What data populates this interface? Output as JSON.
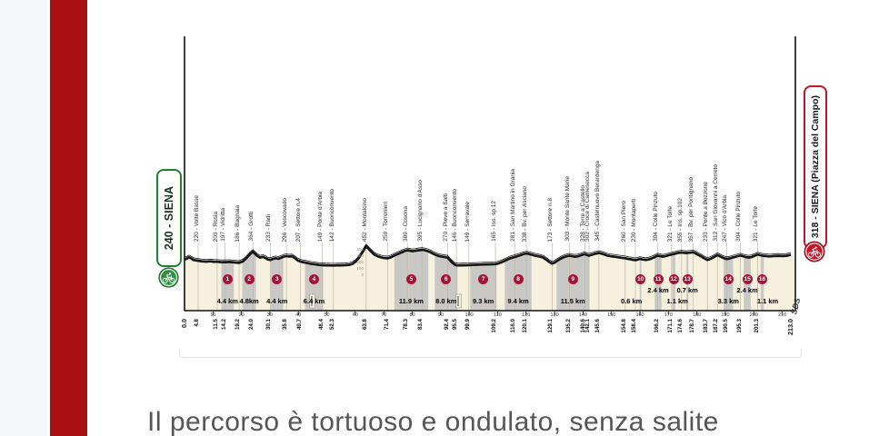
{
  "page": {
    "colors": {
      "left_strip": "#f4f6fa",
      "red_bar": "#a80f12",
      "beige_fill": "#f6f1de",
      "gravel_gray": "#c9c8c5",
      "badge_red": "#a31537",
      "leader_line": "#bcb8aa",
      "profile_black": "#161616",
      "start_green": "#2f9140",
      "finish_red": "#c21527"
    }
  },
  "bottom_text": "Il percorso è tortuoso e ondulato, senza salite",
  "chart_data": {
    "type": "area",
    "xlabel": "km",
    "ylabel": "elevation (m)",
    "xlim": [
      0,
      213
    ],
    "ylim": [
      0,
      500
    ],
    "grid": "leader-lines-only",
    "start_label": {
      "text": "240 - SIENA",
      "icon": "cyclist-icon"
    },
    "finish_label": {
      "text": "318 - SIENA (Piazza del Campo)",
      "icon": "cyclist-icon"
    },
    "sds_signature": "SDS",
    "axis_end_labels": [
      "0.0",
      "213.0"
    ],
    "x_ticks": [
      10,
      20,
      30,
      40,
      50,
      60,
      70,
      80,
      90,
      100,
      110,
      120,
      130,
      140,
      150,
      160,
      170,
      180,
      190,
      200,
      210
    ],
    "elevation_scale_labels": [
      "400",
      "300",
      "200",
      "100",
      "0"
    ],
    "places": [
      {
        "km": 4.8,
        "km_label": "4.8",
        "label": "220 - Volte Basse"
      },
      {
        "km": 11.5,
        "km_label": "11.5",
        "label": "203 - Rosia"
      },
      {
        "km": 14.2,
        "km_label": "14.2",
        "label": "197 - Vidritta"
      },
      {
        "km": 19.2,
        "km_label": "19.2",
        "label": "186 - Bagnaia"
      },
      {
        "km": 24.0,
        "km_label": "24.0",
        "label": "364 - Grotti"
      },
      {
        "km": 30.1,
        "km_label": "30.1",
        "label": "233 - Radi"
      },
      {
        "km": 35.8,
        "km_label": "35.8",
        "label": "296 - Vescovado"
      },
      {
        "km": 40.7,
        "km_label": "40.7",
        "label": "207 - Settore n.4"
      },
      {
        "km": 48.4,
        "km_label": "48.4",
        "label": "149 - Ponte d'Arbia"
      },
      {
        "km": 52.3,
        "km_label": "52.3",
        "label": "142 - Buonconvento"
      },
      {
        "km": 63.8,
        "km_label": "63.8",
        "label": "452 - Montalcino"
      },
      {
        "km": 71.4,
        "km_label": "71.4",
        "label": "259 - Torrenieri"
      },
      {
        "km": 78.3,
        "km_label": "78.3",
        "label": "389 - Cosona"
      },
      {
        "km": 83.4,
        "km_label": "83.4",
        "label": "395 - Lucignano d'Asso"
      },
      {
        "km": 92.4,
        "km_label": "92.4",
        "label": "270 - Pieve a Salti"
      },
      {
        "km": 95.5,
        "km_label": "95.5",
        "label": "146 - Buonconvento"
      },
      {
        "km": 99.9,
        "km_label": "99.9",
        "label": "149 - Serravale"
      },
      {
        "km": 109.2,
        "km_label": "109.2",
        "label": "165 - Ins. sp.12"
      },
      {
        "km": 116.0,
        "km_label": "116.0",
        "label": "281 - San Martino in Grania"
      },
      {
        "km": 120.1,
        "km_label": "120.1",
        "label": "338 - Bv. per Asciano"
      },
      {
        "km": 129.1,
        "km_label": "129.1",
        "label": "173 - Settore n.8"
      },
      {
        "km": 135.2,
        "km_label": "135.2",
        "label": "303 - Monte Sante Marie"
      },
      {
        "km": 140.6,
        "km_label": "140.6",
        "label": "328 - Torre a Castello"
      },
      {
        "km": 142.1,
        "km_label": "142.1",
        "label": "302 - Croce di Camesecca"
      },
      {
        "km": 145.6,
        "km_label": "145.6",
        "label": "345 - Castelnuovo Berardenga"
      },
      {
        "km": 154.8,
        "km_label": "154.8",
        "label": "260 - San Piero"
      },
      {
        "km": 158.4,
        "km_label": "158.4",
        "label": "230 - Montaperti"
      },
      {
        "km": 166.2,
        "km_label": "166.2",
        "label": "304 - Colle Pinzuto"
      },
      {
        "km": 171.1,
        "km_label": "171.1",
        "label": "321 - Le Tolfe"
      },
      {
        "km": 174.6,
        "km_label": "174.6",
        "label": "355 - Ins. sp.102"
      },
      {
        "km": 178.7,
        "km_label": "178.7",
        "label": "357 - Bv. per Pontignano"
      },
      {
        "km": 183.7,
        "km_label": "183.7",
        "label": "233 - Ponte a Bozzone"
      },
      {
        "km": 187.2,
        "km_label": "187.2",
        "label": "312 - San Giovanni a Cerreto"
      },
      {
        "km": 190.5,
        "km_label": "190.5",
        "label": "247 - Vico d'Arbia"
      },
      {
        "km": 195.3,
        "km_label": "195.3",
        "label": "304 - Colle Pinzuto"
      },
      {
        "km": 201.3,
        "km_label": "201.3",
        "label": "321 - Le Tolfe"
      }
    ],
    "sectors": [
      {
        "n": "1",
        "len": "4.4 km",
        "from": 12.9,
        "to": 17.3,
        "row": "low",
        "dx": 0
      },
      {
        "n": "2",
        "len": "4.8km",
        "from": 20.3,
        "to": 25.1,
        "row": "low",
        "dx": 0
      },
      {
        "n": "3",
        "len": "4.4 km",
        "from": 30.3,
        "to": 34.7,
        "row": "low",
        "dx": 0
      },
      {
        "n": "4",
        "len": "6.4 km",
        "from": 42.3,
        "to": 48.7,
        "row": "low",
        "dx": 0
      },
      {
        "n": "5",
        "len": "11.9 km",
        "from": 73.7,
        "to": 85.6,
        "row": "low",
        "dx": 0
      },
      {
        "n": "6",
        "len": "8.0 km",
        "from": 87.9,
        "to": 95.9,
        "row": "low",
        "dx": 0
      },
      {
        "n": "7",
        "len": "9.3 km",
        "from": 100.3,
        "to": 109.6,
        "row": "low",
        "dx": 0
      },
      {
        "n": "8",
        "len": "9.4 km",
        "from": 112.5,
        "to": 121.9,
        "row": "low",
        "dx": 0
      },
      {
        "n": "9",
        "len": "11.5 km",
        "from": 130.7,
        "to": 142.2,
        "row": "low",
        "dx": 0
      },
      {
        "n": "10",
        "len": "0.6 km",
        "from": 159.9,
        "to": 160.5,
        "row": "low",
        "dx": -10
      },
      {
        "n": "11",
        "len": "2.4 km",
        "from": 165.2,
        "to": 167.6,
        "row": "high",
        "dx": 0
      },
      {
        "n": "12",
        "len": "1.1 km",
        "from": 171.3,
        "to": 172.4,
        "row": "low",
        "dx": 4
      },
      {
        "n": "13",
        "len": "0.7 km",
        "from": 176.3,
        "to": 177.0,
        "row": "high",
        "dx": 0
      },
      {
        "n": "14",
        "len": "3.3 km",
        "from": 189.4,
        "to": 192.7,
        "row": "low",
        "dx": 0
      },
      {
        "n": "15",
        "len": "2.4 km",
        "from": 196.5,
        "to": 198.9,
        "row": "high",
        "dx": 0
      },
      {
        "n": "16",
        "len": "1.1 km",
        "from": 202.4,
        "to": 203.5,
        "row": "low",
        "dx": 6
      }
    ],
    "feed_zones": [
      {
        "km": 44.9
      },
      {
        "km": 96.3
      }
    ],
    "profile": [
      [
        0,
        240
      ],
      [
        0.8,
        255
      ],
      [
        1.5,
        275
      ],
      [
        2.2,
        262
      ],
      [
        3,
        235
      ],
      [
        4,
        225
      ],
      [
        4.8,
        220
      ],
      [
        6,
        210
      ],
      [
        7.5,
        206
      ],
      [
        9,
        210
      ],
      [
        10.2,
        205
      ],
      [
        11.5,
        203
      ],
      [
        12.5,
        199
      ],
      [
        14.2,
        197
      ],
      [
        16,
        200
      ],
      [
        17.5,
        192
      ],
      [
        19.2,
        186
      ],
      [
        20.5,
        210
      ],
      [
        21.5,
        250
      ],
      [
        22.5,
        300
      ],
      [
        23.3,
        340
      ],
      [
        24,
        364
      ],
      [
        24.8,
        330
      ],
      [
        25.5,
        300
      ],
      [
        26.5,
        270
      ],
      [
        27.5,
        282
      ],
      [
        28.5,
        262
      ],
      [
        29.3,
        240
      ],
      [
        30.1,
        233
      ],
      [
        31,
        248
      ],
      [
        32,
        260
      ],
      [
        33,
        252
      ],
      [
        34,
        270
      ],
      [
        35,
        288
      ],
      [
        35.8,
        296
      ],
      [
        36.8,
        288
      ],
      [
        37.8,
        292
      ],
      [
        38.8,
        260
      ],
      [
        39.8,
        225
      ],
      [
        40.7,
        207
      ],
      [
        41.8,
        195
      ],
      [
        43,
        185
      ],
      [
        44.5,
        170
      ],
      [
        46,
        160
      ],
      [
        47.2,
        152
      ],
      [
        48.4,
        149
      ],
      [
        49.5,
        146
      ],
      [
        50.5,
        144
      ],
      [
        51.5,
        143
      ],
      [
        52.3,
        142
      ],
      [
        53.5,
        144
      ],
      [
        55,
        146
      ],
      [
        56.5,
        148
      ],
      [
        58,
        155
      ],
      [
        59,
        170
      ],
      [
        60,
        200
      ],
      [
        61,
        250
      ],
      [
        62,
        320
      ],
      [
        62.8,
        380
      ],
      [
        63.4,
        425
      ],
      [
        63.8,
        452
      ],
      [
        64.5,
        420
      ],
      [
        65.3,
        380
      ],
      [
        66.2,
        340
      ],
      [
        67,
        310
      ],
      [
        68,
        290
      ],
      [
        69,
        275
      ],
      [
        70,
        265
      ],
      [
        71.4,
        259
      ],
      [
        72.5,
        275
      ],
      [
        73.5,
        300
      ],
      [
        74.5,
        320
      ],
      [
        75.5,
        340
      ],
      [
        76.5,
        360
      ],
      [
        77.4,
        378
      ],
      [
        78.3,
        389
      ],
      [
        79.2,
        382
      ],
      [
        80,
        375
      ],
      [
        81,
        380
      ],
      [
        82,
        388
      ],
      [
        83.4,
        395
      ],
      [
        84.5,
        388
      ],
      [
        85.5,
        375
      ],
      [
        86.5,
        355
      ],
      [
        87.5,
        330
      ],
      [
        88.5,
        310
      ],
      [
        89.5,
        295
      ],
      [
        90.5,
        285
      ],
      [
        91.5,
        278
      ],
      [
        92.4,
        270
      ],
      [
        93.2,
        230
      ],
      [
        94,
        190
      ],
      [
        94.8,
        160
      ],
      [
        95.5,
        146
      ],
      [
        96.5,
        144
      ],
      [
        97.5,
        146
      ],
      [
        98.7,
        147
      ],
      [
        99.9,
        149
      ],
      [
        101,
        152
      ],
      [
        102.5,
        155
      ],
      [
        104,
        158
      ],
      [
        105.5,
        160
      ],
      [
        107,
        162
      ],
      [
        108.2,
        163
      ],
      [
        109.2,
        165
      ],
      [
        110.5,
        180
      ],
      [
        111.8,
        205
      ],
      [
        113,
        230
      ],
      [
        114,
        252
      ],
      [
        115,
        268
      ],
      [
        116,
        281
      ],
      [
        117,
        295
      ],
      [
        117.8,
        308
      ],
      [
        118.6,
        320
      ],
      [
        119.4,
        330
      ],
      [
        120.1,
        338
      ],
      [
        121,
        330
      ],
      [
        122,
        318
      ],
      [
        123,
        305
      ],
      [
        124,
        295
      ],
      [
        125,
        285
      ],
      [
        126,
        270
      ],
      [
        127,
        240
      ],
      [
        128,
        205
      ],
      [
        129.1,
        173
      ],
      [
        130,
        190
      ],
      [
        131,
        220
      ],
      [
        132,
        250
      ],
      [
        133,
        272
      ],
      [
        134,
        290
      ],
      [
        135.2,
        303
      ],
      [
        136,
        295
      ],
      [
        137,
        285
      ],
      [
        138,
        290
      ],
      [
        139,
        305
      ],
      [
        140,
        320
      ],
      [
        140.6,
        328
      ],
      [
        141.3,
        315
      ],
      [
        142.1,
        302
      ],
      [
        143,
        315
      ],
      [
        144,
        330
      ],
      [
        145.6,
        345
      ],
      [
        146.5,
        335
      ],
      [
        147.5,
        320
      ],
      [
        148.5,
        305
      ],
      [
        149.5,
        295
      ],
      [
        150.5,
        288
      ],
      [
        151.5,
        282
      ],
      [
        152.5,
        275
      ],
      [
        153.5,
        268
      ],
      [
        154.8,
        260
      ],
      [
        155.8,
        250
      ],
      [
        156.8,
        242
      ],
      [
        157.6,
        236
      ],
      [
        158.4,
        230
      ],
      [
        159.2,
        238
      ],
      [
        160,
        248
      ],
      [
        161,
        240
      ],
      [
        162,
        232
      ],
      [
        163,
        240
      ],
      [
        164,
        255
      ],
      [
        165,
        275
      ],
      [
        166.2,
        304
      ],
      [
        167,
        295
      ],
      [
        168,
        285
      ],
      [
        169,
        295
      ],
      [
        170,
        308
      ],
      [
        171.1,
        321
      ],
      [
        172,
        330
      ],
      [
        173,
        342
      ],
      [
        174,
        350
      ],
      [
        174.6,
        355
      ],
      [
        175.4,
        348
      ],
      [
        176.2,
        342
      ],
      [
        177,
        348
      ],
      [
        178,
        353
      ],
      [
        178.7,
        357
      ],
      [
        179.5,
        340
      ],
      [
        180.5,
        315
      ],
      [
        181.5,
        290
      ],
      [
        182.5,
        262
      ],
      [
        183.7,
        233
      ],
      [
        184.5,
        245
      ],
      [
        185.3,
        262
      ],
      [
        186.2,
        285
      ],
      [
        187.2,
        312
      ],
      [
        188,
        295
      ],
      [
        189,
        270
      ],
      [
        190.5,
        247
      ],
      [
        191.5,
        258
      ],
      [
        192.5,
        270
      ],
      [
        193.5,
        283
      ],
      [
        194.4,
        294
      ],
      [
        195.3,
        304
      ],
      [
        196.2,
        292
      ],
      [
        197.2,
        280
      ],
      [
        198.2,
        272
      ],
      [
        199.2,
        280
      ],
      [
        200.2,
        300
      ],
      [
        201.3,
        321
      ],
      [
        202.2,
        310
      ],
      [
        203.2,
        300
      ],
      [
        204.2,
        295
      ],
      [
        205.5,
        290
      ],
      [
        207,
        295
      ],
      [
        208.5,
        300
      ],
      [
        210,
        295
      ],
      [
        211.5,
        300
      ],
      [
        212.4,
        310
      ],
      [
        213,
        318
      ]
    ]
  }
}
